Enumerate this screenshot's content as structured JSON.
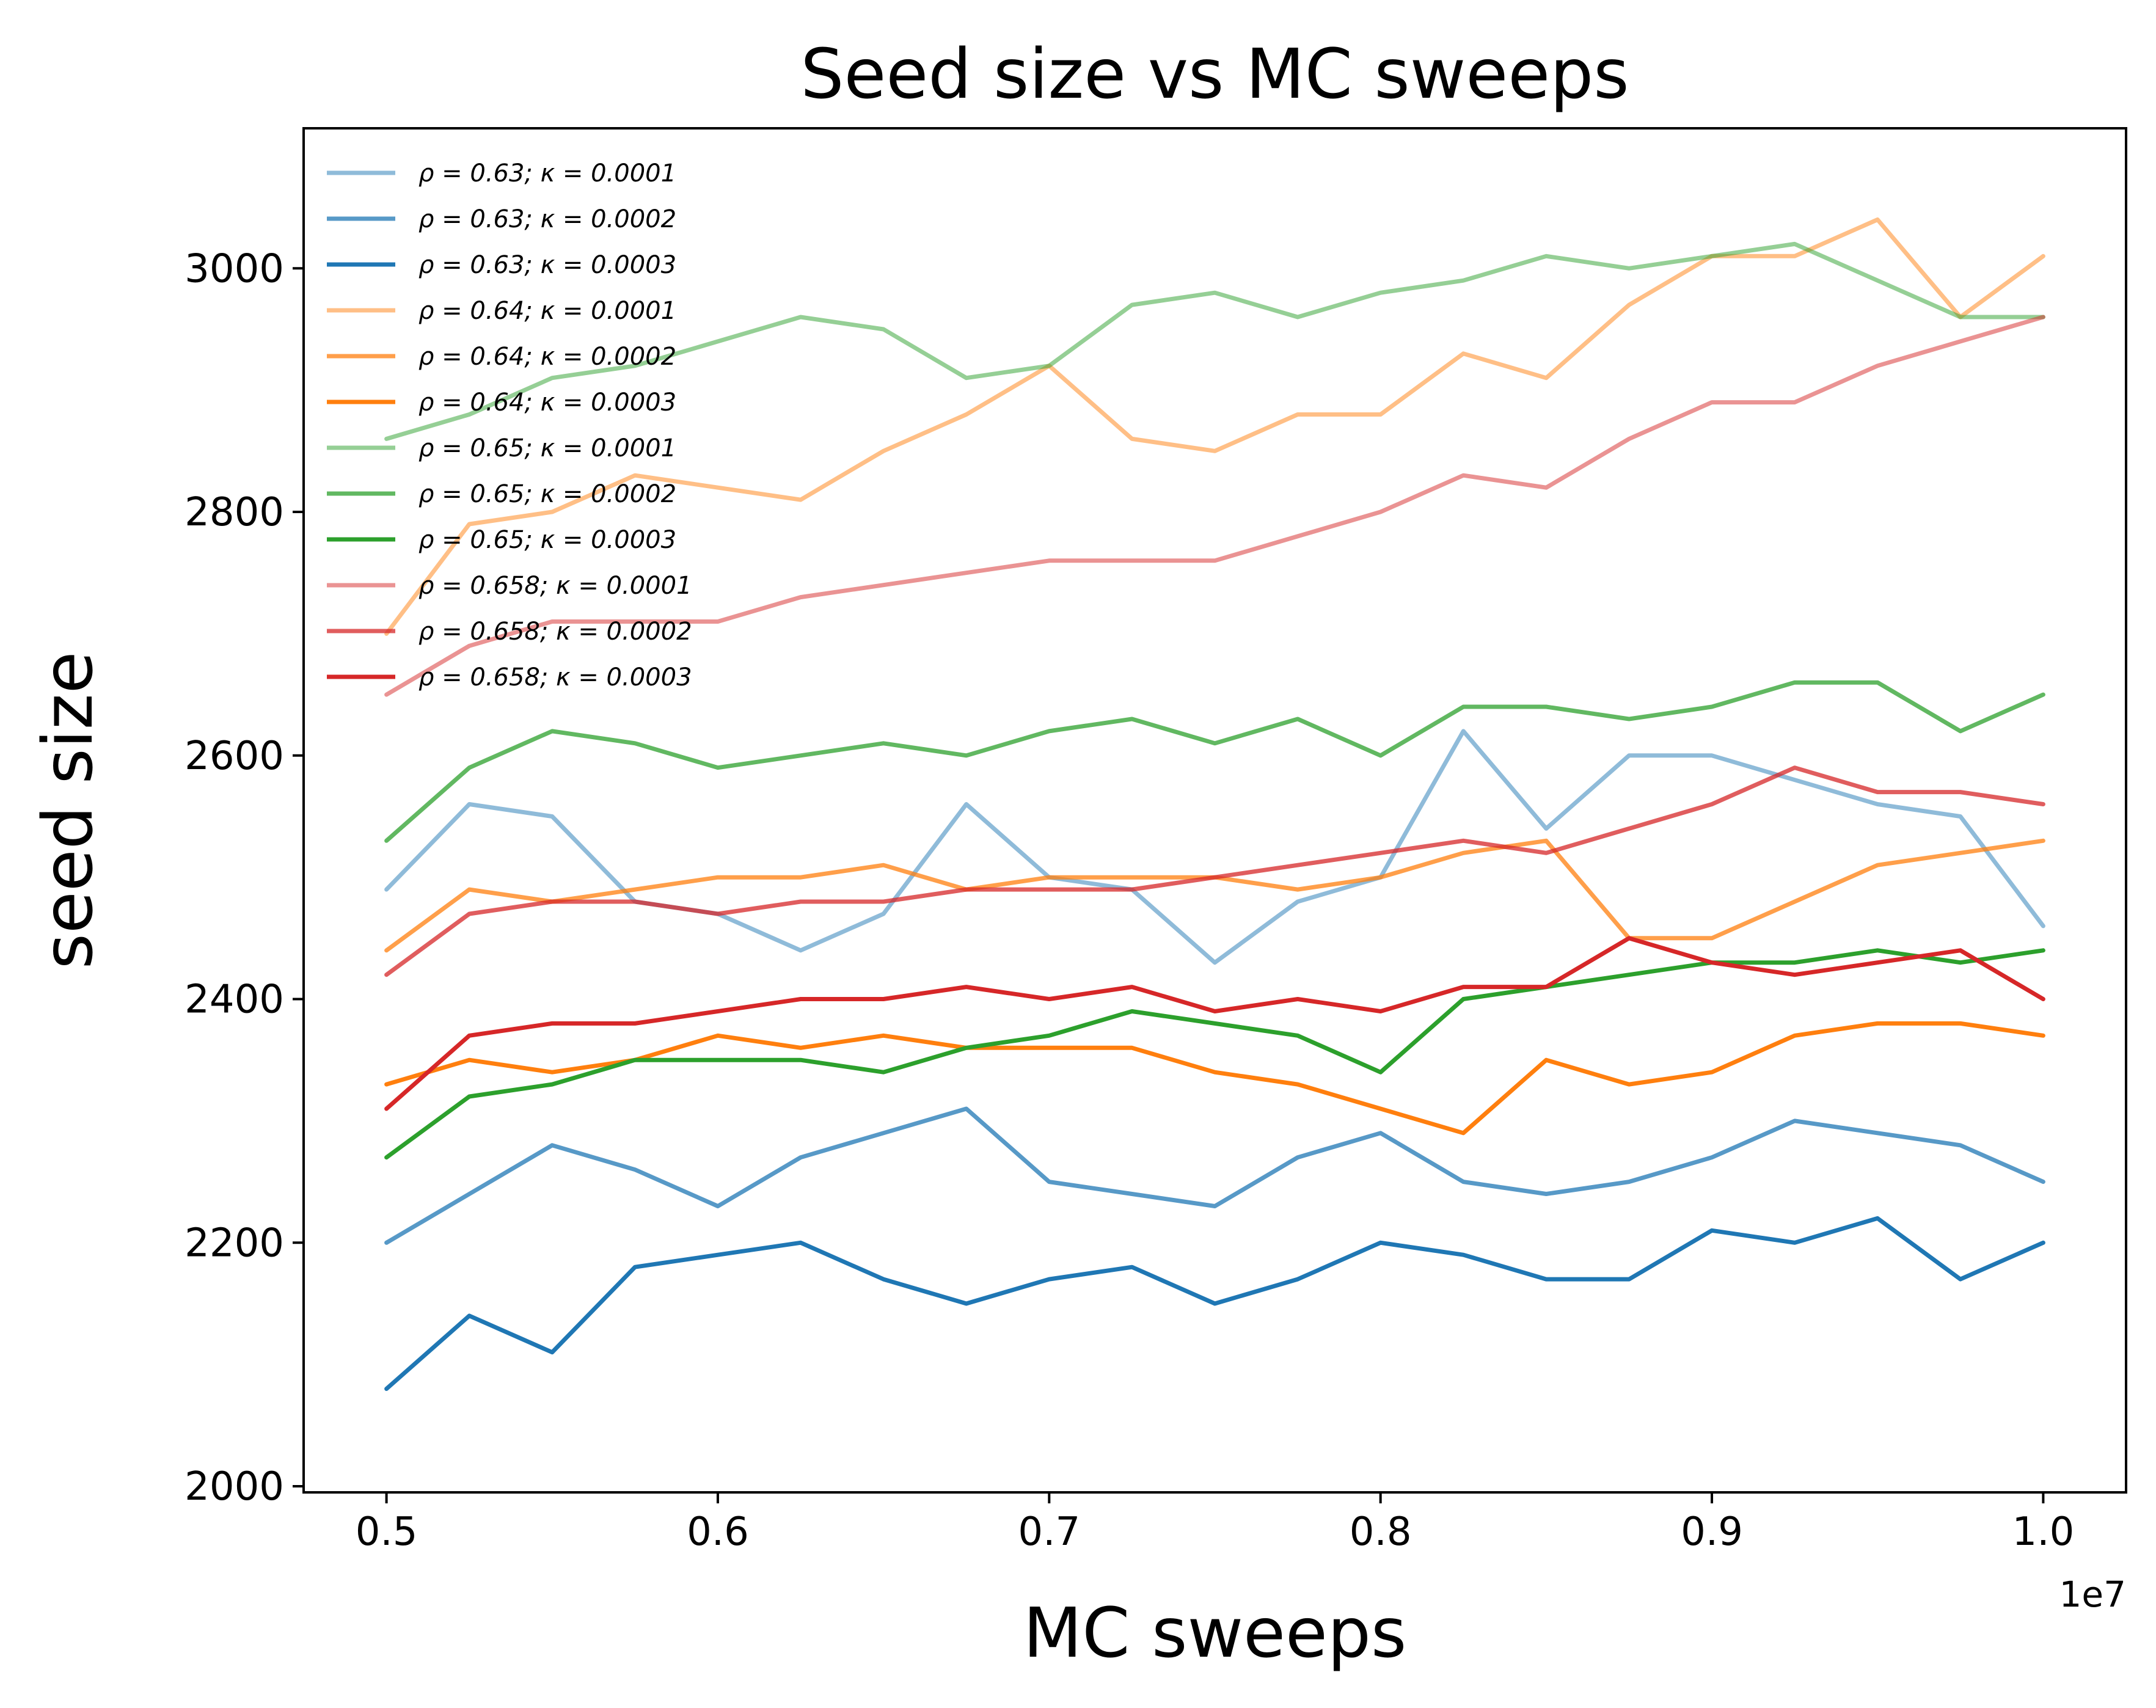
{
  "chart_data": {
    "type": "line",
    "title": "Seed size vs MC sweeps",
    "xlabel": "MC sweeps",
    "ylabel": "seed size",
    "x_offset_label": "1e7",
    "xlim": [
      0.475,
      1.025
    ],
    "ylim": [
      1995,
      3115
    ],
    "xticks": [
      0.5,
      0.6,
      0.7,
      0.8,
      0.9,
      1.0
    ],
    "xtick_labels": [
      "0.5",
      "0.6",
      "0.7",
      "0.8",
      "0.9",
      "1.0"
    ],
    "yticks": [
      2000,
      2200,
      2400,
      2600,
      2800,
      3000
    ],
    "ytick_labels": [
      "2000",
      "2200",
      "2400",
      "2600",
      "2800",
      "3000"
    ],
    "grid": false,
    "legend_position": "upper-left",
    "x": [
      0.5,
      0.525,
      0.55,
      0.575,
      0.6,
      0.625,
      0.65,
      0.675,
      0.7,
      0.725,
      0.75,
      0.775,
      0.8,
      0.825,
      0.85,
      0.875,
      0.9,
      0.925,
      0.95,
      0.975,
      1.0
    ],
    "series": [
      {
        "name": "ρ = 0.63; κ = 0.0001",
        "color": "#1f77b4",
        "opacity": 0.5,
        "values": [
          2490,
          2560,
          2550,
          2480,
          2470,
          2440,
          2470,
          2560,
          2500,
          2490,
          2430,
          2480,
          2500,
          2620,
          2540,
          2600,
          2600,
          2580,
          2560,
          2550,
          2460
        ]
      },
      {
        "name": "ρ = 0.63; κ = 0.0002",
        "color": "#1f77b4",
        "opacity": 0.75,
        "values": [
          2200,
          2240,
          2280,
          2260,
          2230,
          2270,
          2290,
          2310,
          2250,
          2240,
          2230,
          2270,
          2290,
          2250,
          2240,
          2250,
          2270,
          2300,
          2290,
          2280,
          2250
        ]
      },
      {
        "name": "ρ = 0.63; κ = 0.0003",
        "color": "#1f77b4",
        "opacity": 1.0,
        "values": [
          2080,
          2140,
          2110,
          2180,
          2190,
          2200,
          2170,
          2150,
          2170,
          2180,
          2150,
          2170,
          2200,
          2190,
          2170,
          2170,
          2210,
          2200,
          2220,
          2170,
          2200
        ]
      },
      {
        "name": "ρ = 0.64; κ = 0.0001",
        "color": "#ff7f0e",
        "opacity": 0.5,
        "values": [
          2700,
          2790,
          2800,
          2830,
          2820,
          2810,
          2850,
          2880,
          2920,
          2860,
          2850,
          2880,
          2880,
          2930,
          2910,
          2970,
          3010,
          3010,
          3040,
          2960,
          3010
        ]
      },
      {
        "name": "ρ = 0.64; κ = 0.0002",
        "color": "#ff7f0e",
        "opacity": 0.75,
        "values": [
          2440,
          2490,
          2480,
          2490,
          2500,
          2500,
          2510,
          2490,
          2500,
          2500,
          2500,
          2490,
          2500,
          2520,
          2530,
          2450,
          2450,
          2480,
          2510,
          2520,
          2530
        ]
      },
      {
        "name": "ρ = 0.64; κ = 0.0003",
        "color": "#ff7f0e",
        "opacity": 1.0,
        "values": [
          2330,
          2350,
          2340,
          2350,
          2370,
          2360,
          2370,
          2360,
          2360,
          2360,
          2340,
          2330,
          2310,
          2290,
          2350,
          2330,
          2340,
          2370,
          2380,
          2380,
          2370
        ]
      },
      {
        "name": "ρ = 0.65; κ = 0.0001",
        "color": "#2ca02c",
        "opacity": 0.5,
        "values": [
          2860,
          2880,
          2910,
          2920,
          2940,
          2960,
          2950,
          2910,
          2920,
          2970,
          2980,
          2960,
          2980,
          2990,
          3010,
          3000,
          3010,
          3020,
          2990,
          2960,
          2960
        ]
      },
      {
        "name": "ρ = 0.65; κ = 0.0002",
        "color": "#2ca02c",
        "opacity": 0.75,
        "values": [
          2530,
          2590,
          2620,
          2610,
          2590,
          2600,
          2610,
          2600,
          2620,
          2630,
          2610,
          2630,
          2600,
          2640,
          2640,
          2630,
          2640,
          2660,
          2660,
          2620,
          2650
        ]
      },
      {
        "name": "ρ = 0.65; κ = 0.0003",
        "color": "#2ca02c",
        "opacity": 1.0,
        "values": [
          2270,
          2320,
          2330,
          2350,
          2350,
          2350,
          2340,
          2360,
          2370,
          2390,
          2380,
          2370,
          2340,
          2400,
          2410,
          2420,
          2430,
          2430,
          2440,
          2430,
          2440
        ]
      },
      {
        "name": "ρ = 0.658; κ = 0.0001",
        "color": "#d62728",
        "opacity": 0.5,
        "values": [
          2650,
          2690,
          2710,
          2710,
          2710,
          2730,
          2740,
          2750,
          2760,
          2760,
          2760,
          2780,
          2800,
          2830,
          2820,
          2860,
          2890,
          2890,
          2920,
          2940,
          2960
        ]
      },
      {
        "name": "ρ = 0.658; κ = 0.0002",
        "color": "#d62728",
        "opacity": 0.75,
        "values": [
          2420,
          2470,
          2480,
          2480,
          2470,
          2480,
          2480,
          2490,
          2490,
          2490,
          2500,
          2510,
          2520,
          2530,
          2520,
          2540,
          2560,
          2590,
          2570,
          2570,
          2560
        ]
      },
      {
        "name": "ρ = 0.658; κ = 0.0003",
        "color": "#d62728",
        "opacity": 1.0,
        "values": [
          2310,
          2370,
          2380,
          2380,
          2390,
          2400,
          2400,
          2410,
          2400,
          2410,
          2390,
          2400,
          2390,
          2410,
          2410,
          2450,
          2430,
          2420,
          2430,
          2440,
          2400
        ]
      }
    ]
  }
}
